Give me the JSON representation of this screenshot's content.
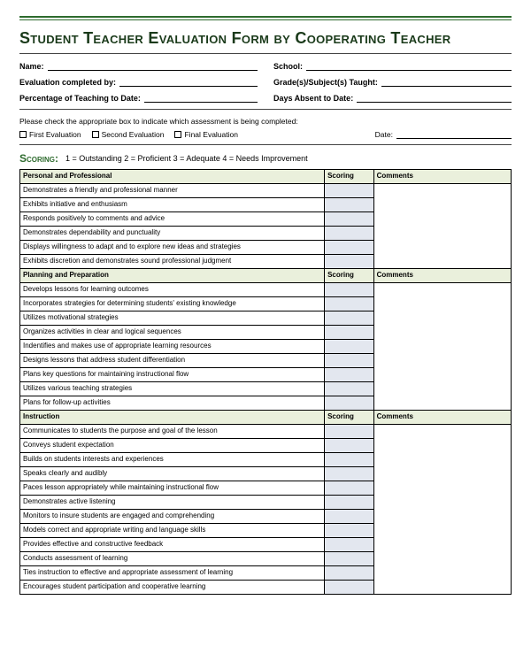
{
  "title": "Student Teacher Evaluation Form by Cooperating Teacher",
  "fields": {
    "name": "Name:",
    "school": "School:",
    "evaluator": "Evaluation completed by:",
    "grades": "Grade(s)/Subject(s) Taught:",
    "pct": "Percentage of Teaching to Date:",
    "absent": "Days Absent to Date:"
  },
  "instruction": "Please check the appropriate box to indicate which assessment is being completed:",
  "checks": {
    "first": "First Evaluation",
    "second": "Second Evaluation",
    "final": "Final Evaluation",
    "date": "Date:"
  },
  "scoring": {
    "label": "Scoring:",
    "legend": "1 = Outstanding   2 = Proficient   3 = Adequate   4 = Needs Improvement"
  },
  "cols": {
    "scoring": "Scoring",
    "comments": "Comments"
  },
  "s1": {
    "head": "Personal and Professional",
    "r": [
      "Demonstrates a friendly and professional manner",
      "Exhibits initiative and enthusiasm",
      "Responds positively to comments and advice",
      "Demonstrates dependability and punctuality",
      "Displays willingness to adapt and to explore new ideas and strategies",
      "Exhibits discretion and demonstrates sound professional judgment"
    ]
  },
  "s2": {
    "head": "Planning and Preparation",
    "r": [
      "Develops lessons for learning outcomes",
      "Incorporates strategies for determining students' existing knowledge",
      "Utilizes motivational strategies",
      "Organizes activities in clear and logical sequences",
      "Indentifies and makes use of appropriate learning resources",
      "Designs lessons that address student differentiation",
      "Plans key questions for maintaining instructional flow",
      "Utilizes various teaching strategies",
      "Plans for follow-up activities"
    ]
  },
  "s3": {
    "head": "Instruction",
    "r": [
      "Communicates to students the purpose and goal of the lesson",
      "Conveys student expectation",
      "Builds on students interests and experiences",
      "Speaks clearly and audibly",
      "Paces lesson appropriately while maintaining instructional flow",
      "Demonstrates active listening",
      "Monitors to insure students are engaged and comprehending",
      "Models correct and appropriate writing and language skills",
      "Provides effective and constructive feedback",
      "Conducts assessment of learning",
      "Ties instruction to effective and appropriate assessment of learning",
      "Encourages student participation and cooperative learning"
    ]
  }
}
